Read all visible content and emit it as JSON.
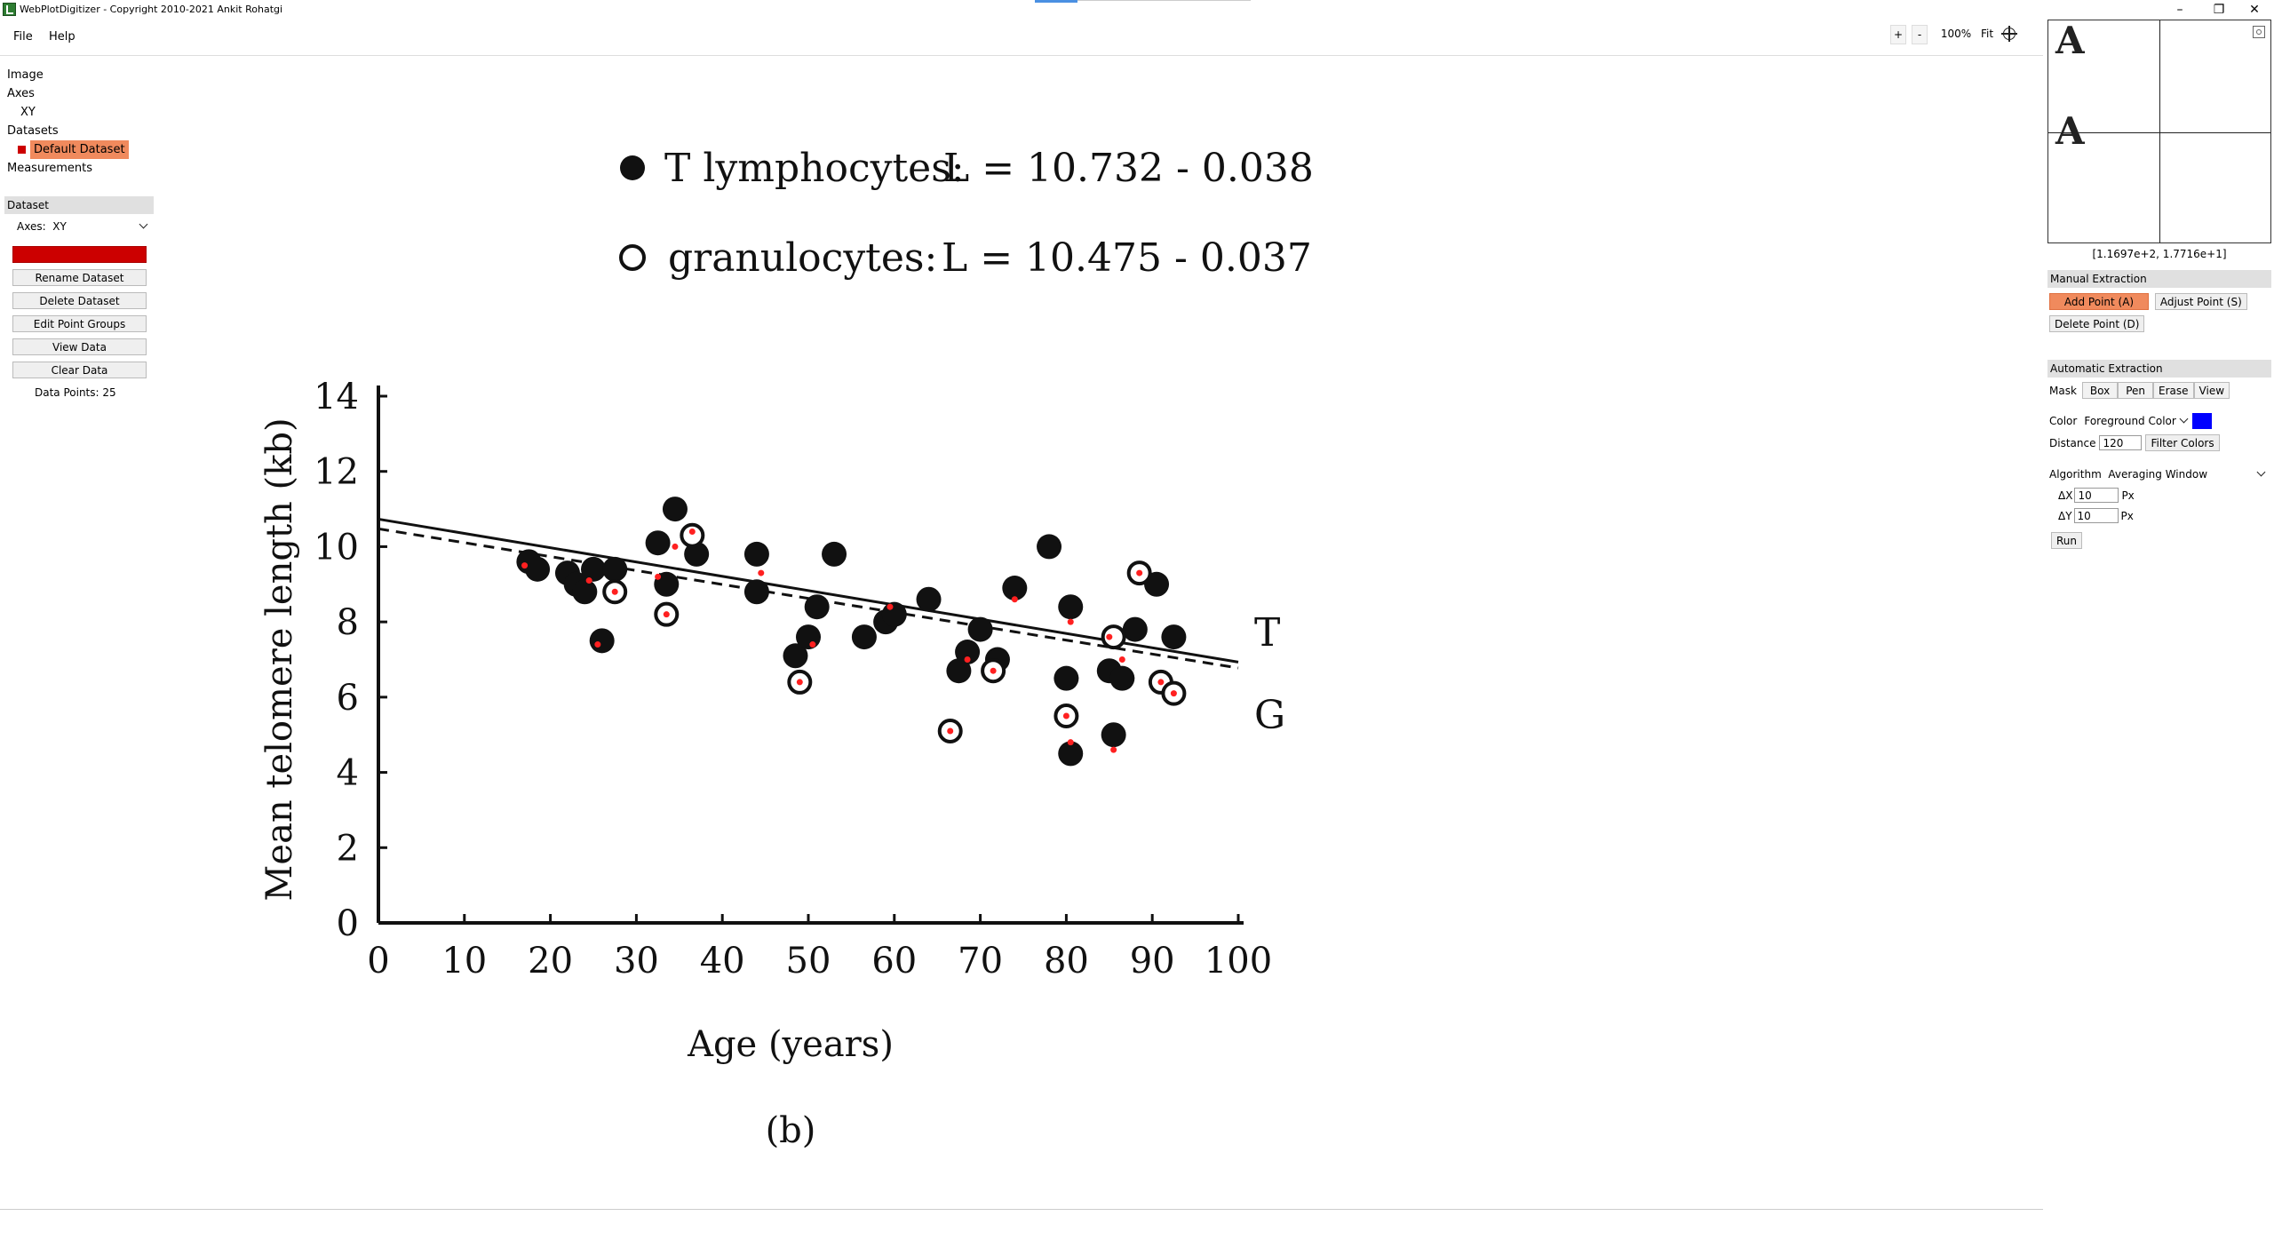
{
  "window": {
    "title": "WebPlotDigitizer - Copyright 2010-2021 Ankit Rohatgi",
    "controls": [
      "–",
      "❐",
      "✕"
    ]
  },
  "menu": [
    "File",
    "Help"
  ],
  "zoom": {
    "plus": "+",
    "minus": "-",
    "level": "100%",
    "fit": "Fit"
  },
  "tree": {
    "image": "Image",
    "axes": "Axes",
    "axes_xy": "XY",
    "datasets": "Datasets",
    "default_dataset": "Default Dataset",
    "measurements": "Measurements"
  },
  "dataset_panel": {
    "header": "Dataset",
    "axes_label": "Axes:",
    "axes_value": "XY",
    "display_color": "Display Color",
    "rename": "Rename Dataset",
    "delete": "Delete Dataset",
    "edit_groups": "Edit Point Groups",
    "view_data": "View Data",
    "clear_data": "Clear Data",
    "data_points": "Data Points: 25"
  },
  "right_panel": {
    "coords": "[1.1697e+2, 1.7716e+1]",
    "zoom_glyph_top": "A",
    "zoom_glyph_mid": "A",
    "manual_header": "Manual Extraction",
    "add_point": "Add Point (A)",
    "adjust_point": "Adjust Point (S)",
    "delete_point": "Delete Point (D)",
    "auto_header": "Automatic Extraction",
    "mask_label": "Mask",
    "mask_buttons": [
      "Box",
      "Pen",
      "Erase",
      "View"
    ],
    "color_label": "Color",
    "color_mode": "Foreground Color",
    "fg_color": "#0000ff",
    "distance_label": "Distance",
    "distance_value": "120",
    "filter_colors": "Filter Colors",
    "algorithm_label": "Algorithm",
    "algorithm_value": "Averaging Window",
    "dx_label": "ΔX",
    "dx_value": "10",
    "dy_label": "ΔY",
    "dy_value": "10",
    "px_unit": "Px",
    "run": "Run"
  },
  "chart_data": {
    "type": "scatter",
    "legend_t_label": "T lymphocytes:",
    "legend_t_eq": "L = 10.732 - 0.038 A",
    "legend_g_label": "granulocytes:",
    "legend_g_eq": "L = 10.475 - 0.037 A",
    "xlabel": "Age (years)",
    "ylabel": "Mean telomere length (kb)",
    "caption": "(b)",
    "line_label_t": "T",
    "line_label_g": "G",
    "xlim": [
      0,
      100
    ],
    "ylim": [
      0,
      14
    ],
    "xticks": [
      0,
      10,
      20,
      30,
      40,
      50,
      60,
      70,
      80,
      90,
      100
    ],
    "yticks": [
      0,
      2,
      4,
      6,
      8,
      10,
      12,
      14
    ],
    "lines": [
      {
        "name": "T",
        "intercept": 10.732,
        "slope": -0.038,
        "style": "solid"
      },
      {
        "name": "G",
        "intercept": 10.475,
        "slope": -0.037,
        "style": "dashed"
      }
    ],
    "series": [
      {
        "name": "T lymphocytes",
        "marker": "filled",
        "points": [
          [
            17.5,
            9.6
          ],
          [
            18.5,
            9.4
          ],
          [
            22,
            9.3
          ],
          [
            23,
            9.0
          ],
          [
            24,
            8.8
          ],
          [
            25,
            9.4
          ],
          [
            26,
            7.5
          ],
          [
            27.5,
            9.4
          ],
          [
            32.5,
            10.1
          ],
          [
            33.5,
            9.0
          ],
          [
            34.5,
            11.0
          ],
          [
            37,
            9.8
          ],
          [
            44,
            9.8
          ],
          [
            44,
            8.8
          ],
          [
            48.5,
            7.1
          ],
          [
            50,
            7.6
          ],
          [
            51,
            8.4
          ],
          [
            53,
            9.8
          ],
          [
            56.5,
            7.6
          ],
          [
            59,
            8.0
          ],
          [
            60,
            8.2
          ],
          [
            64,
            8.6
          ],
          [
            67.5,
            6.7
          ],
          [
            68.5,
            7.2
          ],
          [
            70,
            7.8
          ],
          [
            72,
            7.0
          ],
          [
            74,
            8.9
          ],
          [
            78,
            10.0
          ],
          [
            80.5,
            8.4
          ],
          [
            80,
            6.5
          ],
          [
            80.5,
            4.5
          ],
          [
            85,
            6.7
          ],
          [
            86.5,
            6.5
          ],
          [
            85.5,
            5.0
          ],
          [
            88,
            7.8
          ],
          [
            90.5,
            9.0
          ],
          [
            92.5,
            7.6
          ]
        ]
      },
      {
        "name": "granulocytes",
        "marker": "open",
        "points": [
          [
            27.5,
            8.8
          ],
          [
            33.5,
            8.2
          ],
          [
            36.5,
            10.3
          ],
          [
            49,
            6.4
          ],
          [
            66.5,
            5.1
          ],
          [
            71.5,
            6.7
          ],
          [
            80,
            5.5
          ],
          [
            85.5,
            7.6
          ],
          [
            88.5,
            9.3
          ],
          [
            91,
            6.4
          ],
          [
            92.5,
            6.1
          ]
        ]
      }
    ],
    "digitized_points": [
      [
        17,
        9.5
      ],
      [
        24.5,
        9.1
      ],
      [
        25.5,
        7.4
      ],
      [
        32.5,
        9.2
      ],
      [
        34.5,
        10.0
      ],
      [
        36.5,
        10.4
      ],
      [
        44.5,
        9.3
      ],
      [
        49,
        6.4
      ],
      [
        50.5,
        7.4
      ],
      [
        59.5,
        8.4
      ],
      [
        66.5,
        5.1
      ],
      [
        68.5,
        7.0
      ],
      [
        71.5,
        6.7
      ],
      [
        74,
        8.6
      ],
      [
        80,
        5.5
      ],
      [
        80.5,
        8.0
      ],
      [
        80.5,
        4.8
      ],
      [
        85,
        7.6
      ],
      [
        85.5,
        4.6
      ],
      [
        86.5,
        7.0
      ],
      [
        88.5,
        9.3
      ],
      [
        91,
        6.4
      ],
      [
        92.5,
        6.1
      ],
      [
        27.5,
        8.8
      ],
      [
        33.5,
        8.2
      ]
    ]
  }
}
